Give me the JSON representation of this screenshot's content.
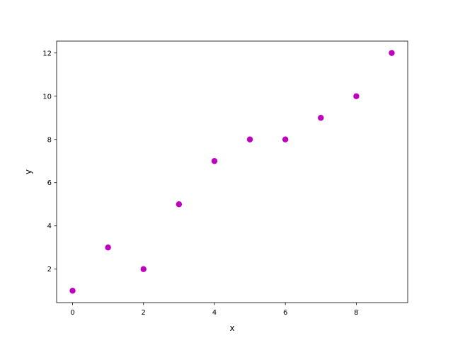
{
  "chart_data": {
    "type": "scatter",
    "title": "",
    "xlabel": "x",
    "ylabel": "y",
    "x": [
      0,
      1,
      2,
      3,
      4,
      5,
      6,
      7,
      8,
      9
    ],
    "y": [
      1,
      3,
      2,
      5,
      7,
      8,
      8,
      9,
      10,
      12
    ],
    "xlim": [
      -0.45,
      9.45
    ],
    "ylim": [
      0.45,
      12.55
    ],
    "xticks": [
      0,
      2,
      4,
      6,
      8
    ],
    "yticks": [
      2,
      4,
      6,
      8,
      10,
      12
    ],
    "grid": false,
    "marker_color": "#bf00bf"
  }
}
